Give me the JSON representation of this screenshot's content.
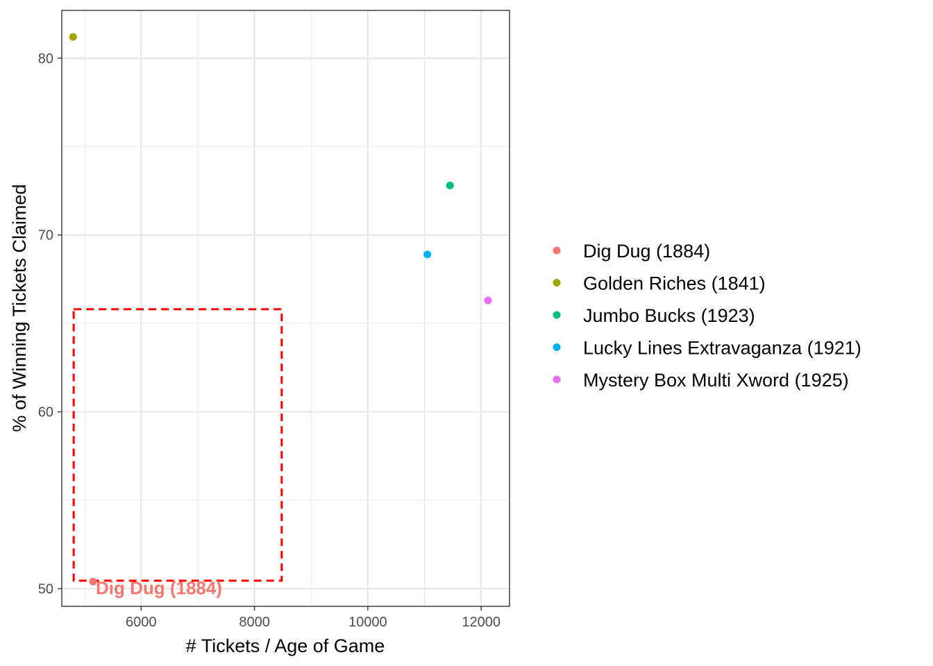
{
  "chart_data": {
    "type": "scatter",
    "xlabel": "# Tickets / Age of Game",
    "ylabel": "% of Winning Tickets Claimed",
    "xlim": [
      4600,
      12500
    ],
    "ylim": [
      49,
      82.7
    ],
    "x_ticks": [
      6000,
      8000,
      10000,
      12000
    ],
    "x_tick_labels": [
      "6000",
      "8000",
      "10000",
      "12000"
    ],
    "y_ticks": [
      50,
      60,
      70,
      80
    ],
    "y_tick_labels": [
      "50",
      "60",
      "70",
      "80"
    ],
    "grid": true,
    "legend_position": "right",
    "series": [
      {
        "name": "Dig Dug (1884)",
        "color": "#F8766D",
        "x": 5150,
        "y": 50.4
      },
      {
        "name": "Golden Riches (1841)",
        "color": "#A3A500",
        "x": 4800,
        "y": 81.2
      },
      {
        "name": "Jumbo Bucks (1923)",
        "color": "#00BF7D",
        "x": 11450,
        "y": 72.8
      },
      {
        "name": "Lucky Lines Extravaganza (1921)",
        "color": "#00B0F6",
        "x": 11050,
        "y": 68.9
      },
      {
        "name": "Mystery Box Multi Xword (1925)",
        "color": "#E76BF3",
        "x": 12120,
        "y": 66.3
      }
    ],
    "annotations": [
      {
        "text": "Dig Dug (1884)",
        "color": "#F8766D",
        "x": 5200,
        "y": 50.0
      }
    ],
    "highlight_box": {
      "color": "#FF0000",
      "style": "dashed",
      "x_range": [
        4810,
        8480
      ],
      "y_range": [
        50.45,
        65.8
      ]
    }
  }
}
